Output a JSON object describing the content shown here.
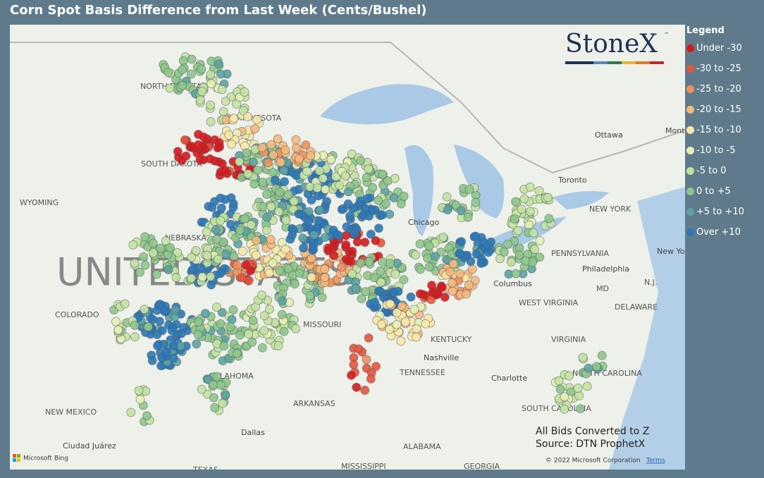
{
  "header": {
    "title": "Corn Spot Basis Difference from Last Week (Cents/Bushel)"
  },
  "legend": {
    "title": "Legend",
    "items": [
      {
        "label": "Under -30",
        "color": "#d7191c"
      },
      {
        "label": "-30 to -25",
        "color": "#e6553a"
      },
      {
        "label": "-25 to -20",
        "color": "#ef9057"
      },
      {
        "label": "-20 to -15",
        "color": "#f5b97b"
      },
      {
        "label": "-15 to -10",
        "color": "#f8e9a6"
      },
      {
        "label": "-10 to -5",
        "color": "#e4f0b2"
      },
      {
        "label": "-5 to 0",
        "color": "#c3e3a0"
      },
      {
        "label": "0 to +5",
        "color": "#8cc88a"
      },
      {
        "label": "+5 to +10",
        "color": "#5aa3a2"
      },
      {
        "label": "Over +10",
        "color": "#2a79b8"
      }
    ]
  },
  "map": {
    "country": "UNITED STATES",
    "labels": [
      "NORTH DAKOTA",
      "MINNESOTA",
      "SOUTH DAKOTA",
      "WYOMING",
      "NEBRASKA",
      "COLORADO",
      "MISSOURI",
      "KENTUCKY",
      "TENNESSEE",
      "OKLAHOMA",
      "ARKANSAS",
      "NEW MEXICO",
      "ALABAMA",
      "GEORGIA",
      "TEXAS",
      "MISSISSIPPI",
      "SOUTH CAROLINA",
      "NORTH CAROLINA",
      "VIRGINIA",
      "WEST VIRGINIA",
      "PENNSYLVANIA",
      "NEW YORK",
      "MD",
      "N.J.",
      "DELAWARE",
      "Chicago",
      "Toronto",
      "Ottawa",
      "Columbus",
      "Philadelphia",
      "Nashville",
      "Charlotte",
      "Dallas",
      "Ciudad Juárez",
      "New York",
      "Mont"
    ],
    "logo": "StoneX",
    "trademark": "™",
    "notes": [
      "All Bids Converted to Z",
      "Source: DTN ProphetX"
    ],
    "attribution": "Microsoft Bing",
    "copyright": "© 2022 Microsoft Corporation",
    "terms": "Terms"
  }
}
